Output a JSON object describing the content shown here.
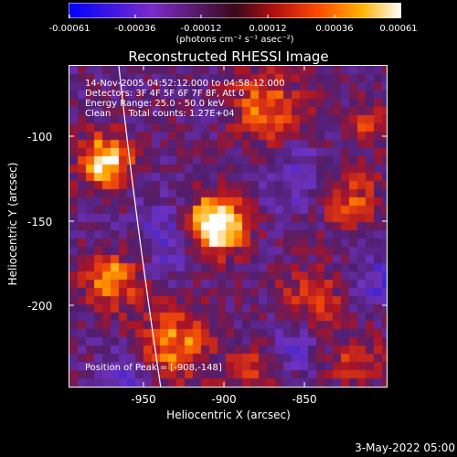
{
  "colorbar": {
    "ticks": [
      "-0.00061",
      "-0.00036",
      "-0.00012",
      "0.00012",
      "0.00036",
      "0.00061"
    ],
    "units": "(photons cm⁻² s⁻¹ asec⁻²)",
    "range": [
      -0.00061,
      0.00061
    ]
  },
  "title": "Reconstructed RHESSI Image",
  "info": {
    "time": "14-Nov-2005 04:52:12.000 to 04:58:12.000",
    "detectors": "Detectors: 3F 4F 5F 6F 7F 8F, Att 0",
    "energy": "Energy Range: 25.0 - 50.0 keV",
    "clean": "Clean      Total counts: 1.27E+04"
  },
  "peak": "Position of Peak = [-908,-148]",
  "axes": {
    "xlabel": "Heliocentric X (arcsec)",
    "ylabel": "Heliocentric Y (arcsec)",
    "xticks": [
      "-950",
      "-900",
      "-850"
    ],
    "yticks": [
      "-100",
      "-150",
      "-200"
    ]
  },
  "timestamp": "3-May-2022 05:00"
}
